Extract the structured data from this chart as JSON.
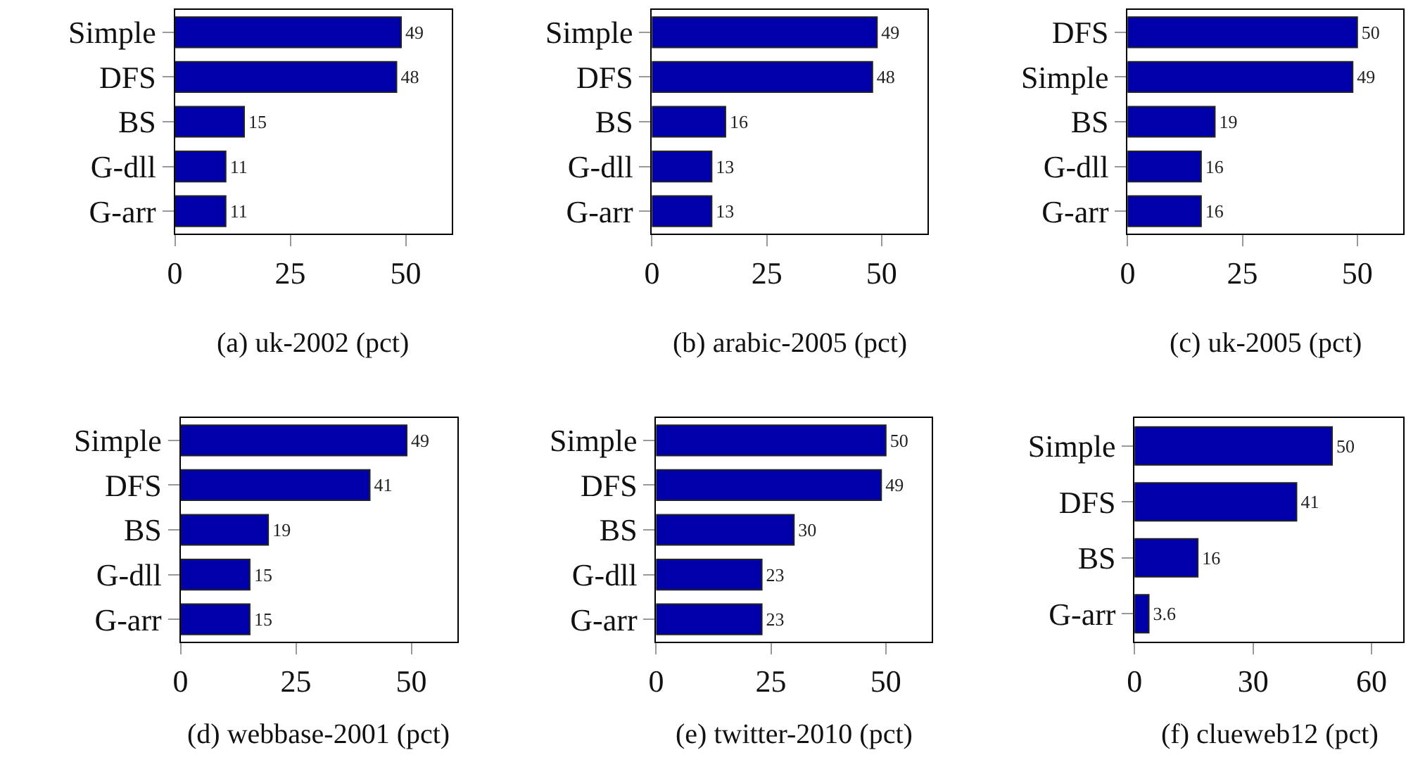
{
  "chart_data": [
    {
      "type": "bar",
      "orientation": "horizontal",
      "title": "(a) uk-2002 (pct)",
      "categories": [
        "Simple",
        "DFS",
        "BS",
        "G-dll",
        "G-arr"
      ],
      "values": [
        49,
        48,
        15,
        11,
        11
      ],
      "color": "#0000aa",
      "xlim": [
        0,
        60
      ],
      "xticks": [
        0,
        25,
        50
      ],
      "data_labels": true
    },
    {
      "type": "bar",
      "orientation": "horizontal",
      "title": "(b) arabic-2005 (pct)",
      "categories": [
        "Simple",
        "DFS",
        "BS",
        "G-dll",
        "G-arr"
      ],
      "values": [
        49,
        48,
        16,
        13,
        13
      ],
      "color": "#0000aa",
      "xlim": [
        0,
        60
      ],
      "xticks": [
        0,
        25,
        50
      ],
      "data_labels": true
    },
    {
      "type": "bar",
      "orientation": "horizontal",
      "title": "(c) uk-2005 (pct)",
      "categories": [
        "DFS",
        "Simple",
        "BS",
        "G-dll",
        "G-arr"
      ],
      "values": [
        50,
        49,
        19,
        16,
        16
      ],
      "color": "#0000aa",
      "xlim": [
        0,
        60
      ],
      "xticks": [
        0,
        25,
        50
      ],
      "data_labels": true
    },
    {
      "type": "bar",
      "orientation": "horizontal",
      "title": "(d) webbase-2001 (pct)",
      "categories": [
        "Simple",
        "DFS",
        "BS",
        "G-dll",
        "G-arr"
      ],
      "values": [
        49,
        41,
        19,
        15,
        15
      ],
      "color": "#0000aa",
      "xlim": [
        0,
        60
      ],
      "xticks": [
        0,
        25,
        50
      ],
      "data_labels": true
    },
    {
      "type": "bar",
      "orientation": "horizontal",
      "title": "(e) twitter-2010 (pct)",
      "categories": [
        "Simple",
        "DFS",
        "BS",
        "G-dll",
        "G-arr"
      ],
      "values": [
        50,
        49,
        30,
        23,
        23
      ],
      "color": "#0000aa",
      "xlim": [
        0,
        60
      ],
      "xticks": [
        0,
        25,
        50
      ],
      "data_labels": true
    },
    {
      "type": "bar",
      "orientation": "horizontal",
      "title": "(f) clueweb12 (pct)",
      "categories": [
        "Simple",
        "DFS",
        "BS",
        "G-arr"
      ],
      "values": [
        50,
        41,
        16,
        3.6
      ],
      "color": "#0000aa",
      "xlim": [
        0,
        68
      ],
      "xticks": [
        0,
        30,
        60
      ],
      "data_labels": true
    }
  ]
}
